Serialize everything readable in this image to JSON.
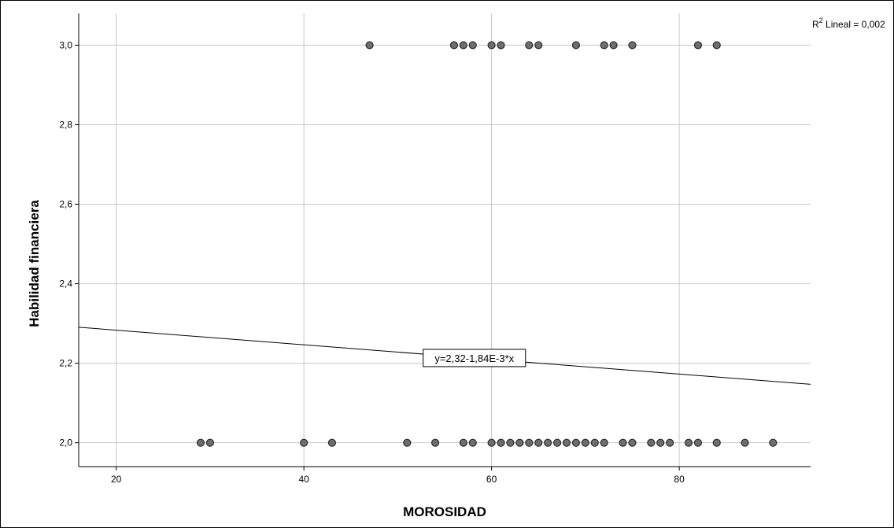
{
  "chart_data": {
    "type": "scatter",
    "title": "",
    "xlabel": "MOROSIDAD",
    "ylabel": "Habilidad financiera",
    "xlim": [
      16,
      94
    ],
    "ylim": [
      1.94,
      3.08
    ],
    "x_ticks": [
      20,
      40,
      60,
      80
    ],
    "x_tick_labels": [
      "20",
      "40",
      "60",
      "80"
    ],
    "y_ticks": [
      2.0,
      2.2,
      2.4,
      2.6,
      2.8,
      3.0
    ],
    "y_tick_labels": [
      "2,0",
      "2,2",
      "2,4",
      "2,6",
      "2,8",
      "3,0"
    ],
    "grid": true,
    "points": [
      {
        "x": 47,
        "y": 3.0
      },
      {
        "x": 56,
        "y": 3.0
      },
      {
        "x": 57,
        "y": 3.0
      },
      {
        "x": 58,
        "y": 3.0
      },
      {
        "x": 60,
        "y": 3.0
      },
      {
        "x": 61,
        "y": 3.0
      },
      {
        "x": 64,
        "y": 3.0
      },
      {
        "x": 65,
        "y": 3.0
      },
      {
        "x": 69,
        "y": 3.0
      },
      {
        "x": 72,
        "y": 3.0
      },
      {
        "x": 73,
        "y": 3.0
      },
      {
        "x": 75,
        "y": 3.0
      },
      {
        "x": 82,
        "y": 3.0
      },
      {
        "x": 84,
        "y": 3.0
      },
      {
        "x": 29,
        "y": 2.0
      },
      {
        "x": 30,
        "y": 2.0
      },
      {
        "x": 40,
        "y": 2.0
      },
      {
        "x": 43,
        "y": 2.0
      },
      {
        "x": 51,
        "y": 2.0
      },
      {
        "x": 54,
        "y": 2.0
      },
      {
        "x": 57,
        "y": 2.0
      },
      {
        "x": 58,
        "y": 2.0
      },
      {
        "x": 60,
        "y": 2.0
      },
      {
        "x": 61,
        "y": 2.0
      },
      {
        "x": 62,
        "y": 2.0
      },
      {
        "x": 63,
        "y": 2.0
      },
      {
        "x": 64,
        "y": 2.0
      },
      {
        "x": 65,
        "y": 2.0
      },
      {
        "x": 66,
        "y": 2.0
      },
      {
        "x": 67,
        "y": 2.0
      },
      {
        "x": 68,
        "y": 2.0
      },
      {
        "x": 69,
        "y": 2.0
      },
      {
        "x": 70,
        "y": 2.0
      },
      {
        "x": 71,
        "y": 2.0
      },
      {
        "x": 72,
        "y": 2.0
      },
      {
        "x": 74,
        "y": 2.0
      },
      {
        "x": 75,
        "y": 2.0
      },
      {
        "x": 77,
        "y": 2.0
      },
      {
        "x": 78,
        "y": 2.0
      },
      {
        "x": 79,
        "y": 2.0
      },
      {
        "x": 81,
        "y": 2.0
      },
      {
        "x": 82,
        "y": 2.0
      },
      {
        "x": 84,
        "y": 2.0
      },
      {
        "x": 87,
        "y": 2.0
      },
      {
        "x": 90,
        "y": 2.0
      }
    ],
    "fit_line": {
      "intercept": 2.32,
      "slope": -0.00184
    },
    "fit_equation": "y=2,32-1,84E-3*x",
    "r2_prefix": "R",
    "r2_superscript": "2",
    "r2_text": " Lineal = 0,002",
    "colors": {
      "point_fill": "#6e6e6e",
      "point_stroke": "#2b2b2b",
      "grid": "#c8c8c8",
      "line": "#000000"
    }
  }
}
